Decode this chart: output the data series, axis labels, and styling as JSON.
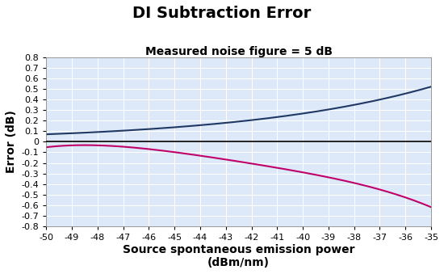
{
  "title": "DI Subtraction Error",
  "subtitle": "Measured noise figure = 5 dB",
  "xlabel": "Source spontaneous emission power\n(dBm/nm)",
  "ylabel": "Error (dB)",
  "xlim": [
    -50,
    -35
  ],
  "ylim": [
    -0.8,
    0.8
  ],
  "xticks": [
    -50,
    -49,
    -48,
    -47,
    -46,
    -45,
    -44,
    -43,
    -42,
    -41,
    -40,
    -39,
    -38,
    -37,
    -36,
    -35
  ],
  "yticks": [
    -0.8,
    -0.7,
    -0.6,
    -0.5,
    -0.4,
    -0.3,
    -0.2,
    -0.1,
    0.0,
    0.1,
    0.2,
    0.3,
    0.4,
    0.5,
    0.6,
    0.7,
    0.8
  ],
  "blue_color": "#1F3864",
  "pink_color": "#C0006A",
  "background_color": "#DDE8F8",
  "grid_color": "#FFFFFF",
  "title_fontsize": 14,
  "subtitle_fontsize": 10,
  "axis_label_fontsize": 10,
  "tick_fontsize": 8
}
